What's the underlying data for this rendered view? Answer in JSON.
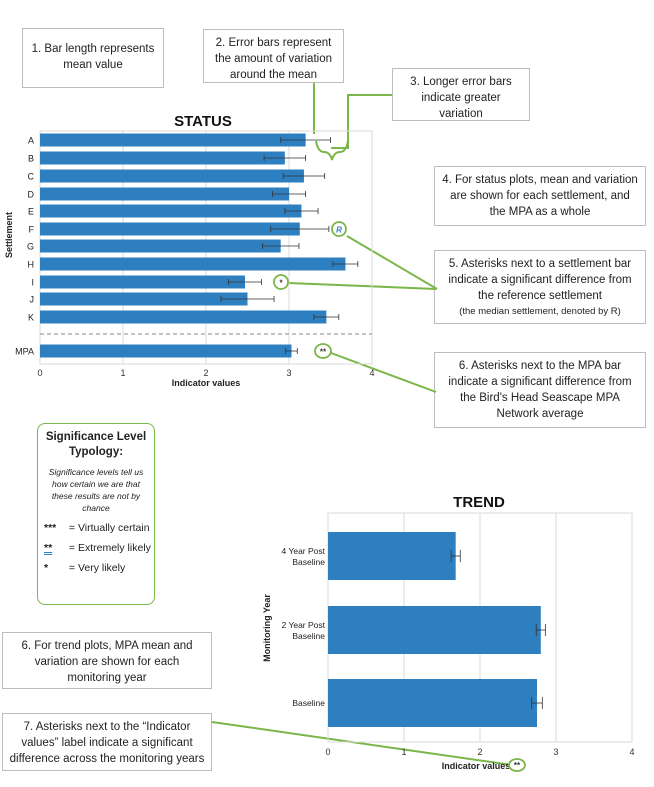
{
  "notes": {
    "n1": "1. Bar length represents mean value",
    "n2": "2. Error bars represent the amount of variation around the mean",
    "n3": "3. Longer error bars indicate greater variation",
    "n4": "4. For status plots, mean and variation are shown for each settlement, and the MPA as a whole",
    "n5": "5. Asterisks next to a settlement bar indicate a significant difference from the reference settlement",
    "n5_sub": "(the median settlement, denoted by R)",
    "n6a": "6. Asterisks next to the MPA bar indicate a significant difference from the Bird's Head Seascape MPA Network average",
    "n6b": "6. For trend plots, MPA mean and variation are shown for each monitoring year",
    "n7": "7. Asterisks next to the “Indicator values” label indicate a significant difference across the monitoring years"
  },
  "legend": {
    "title": "Significance Level Typology:",
    "desc": "Significance levels tell us how certain we are that these results are not by chance",
    "rows": [
      {
        "symbol": "***",
        "label": " = Virtually certain"
      },
      {
        "symbol": "**",
        "label": " = Extremely likely"
      },
      {
        "symbol": "*",
        "label": " = Very likely"
      }
    ]
  },
  "colors": {
    "bar": "#2e7fc0",
    "accent": "#7ab648",
    "grid": "#d9d9d9"
  },
  "chart_data": [
    {
      "type": "bar",
      "orientation": "horizontal",
      "title": "STATUS",
      "xlabel": "Indicator values",
      "ylabel": "Settlement",
      "xlim": [
        0,
        4
      ],
      "xticks": [
        "0",
        "1",
        "2",
        "3",
        "4"
      ],
      "categories": [
        "A",
        "B",
        "C",
        "D",
        "E",
        "F",
        "G",
        "H",
        "I",
        "J",
        "K",
        "MPA"
      ],
      "values": [
        3.2,
        2.95,
        3.18,
        3.0,
        3.15,
        3.13,
        2.9,
        3.68,
        2.47,
        2.5,
        3.45,
        3.03
      ],
      "errors": [
        0.3,
        0.25,
        0.25,
        0.2,
        0.2,
        0.35,
        0.22,
        0.15,
        0.2,
        0.32,
        0.15,
        0.07
      ],
      "annotations": [
        {
          "category": "F",
          "text": "R"
        },
        {
          "category": "I",
          "text": "*"
        },
        {
          "category": "MPA",
          "text": "**"
        }
      ]
    },
    {
      "type": "bar",
      "orientation": "horizontal",
      "title": "TREND",
      "xlabel": "Indicator values",
      "ylabel": "Monitoring Year",
      "xlim": [
        0,
        4
      ],
      "xticks": [
        "0",
        "1",
        "2",
        "3",
        "4"
      ],
      "categories": [
        "4 Year Post Baseline",
        "2 Year Post Baseline",
        "Baseline"
      ],
      "values": [
        1.68,
        2.8,
        2.75
      ],
      "errors": [
        0.06,
        0.06,
        0.07
      ],
      "annotations": [
        {
          "target": "xlabel",
          "text": "**"
        }
      ]
    }
  ]
}
